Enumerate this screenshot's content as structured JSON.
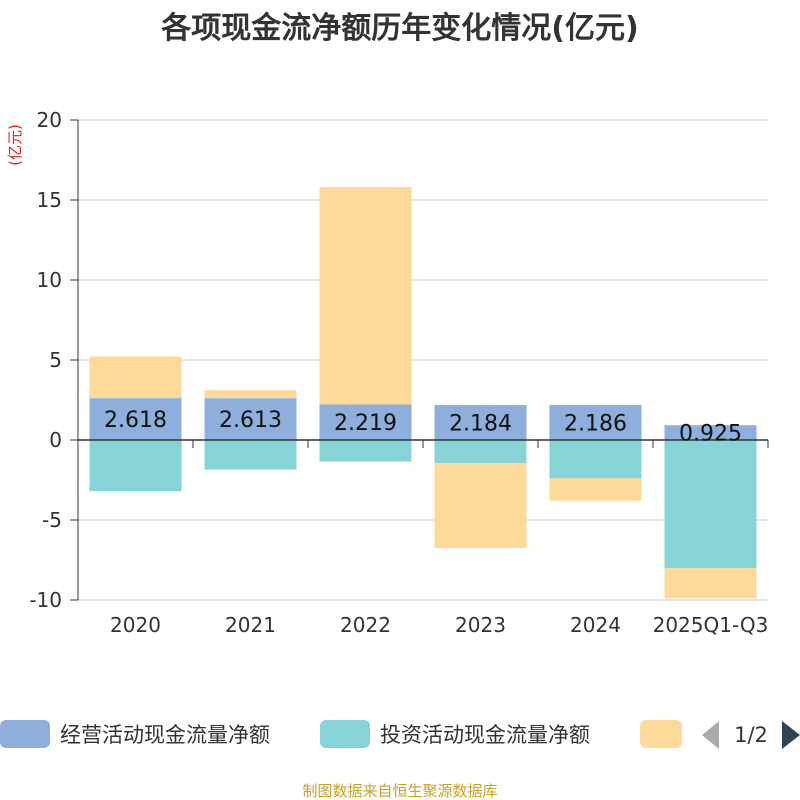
{
  "chart_data": {
    "type": "bar",
    "stacked": true,
    "title": "各项现金流净额历年变化情况(亿元)",
    "unit": "(亿元)",
    "categories": [
      "2020",
      "2021",
      "2022",
      "2023",
      "2024",
      "2025Q1-Q3"
    ],
    "ylim": [
      -10,
      20
    ],
    "yticks": [
      20,
      15,
      10,
      5,
      0,
      -5,
      -10
    ],
    "grid": true,
    "series": [
      {
        "name": "经营活动现金流量净额",
        "color": "#8eaedc",
        "values": [
          2.618,
          2.613,
          2.219,
          2.184,
          2.186,
          0.925
        ],
        "labels": [
          "2.618",
          "2.613",
          "2.219",
          "2.184",
          "2.186",
          "0.925"
        ]
      },
      {
        "name": "投资活动现金流量净额",
        "color": "#86d4d6",
        "values": [
          -3.2,
          -1.85,
          -1.35,
          -1.45,
          -2.4,
          -8.0
        ]
      },
      {
        "name": "",
        "color": "#fdd99a",
        "values": [
          2.6,
          0.5,
          13.6,
          -5.3,
          -1.4,
          -1.9
        ]
      }
    ],
    "legend": {
      "position": "bottom",
      "page": "1/2"
    },
    "source": "制图数据来自恒生聚源数据库"
  }
}
